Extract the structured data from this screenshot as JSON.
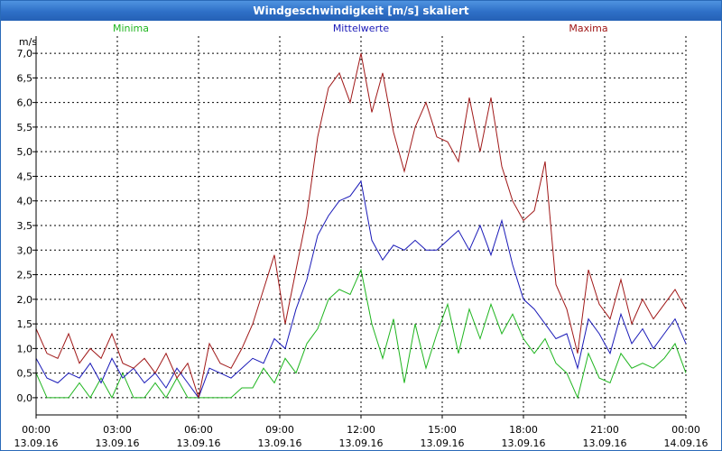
{
  "window": {
    "title": "Windgeschwindigkeit [m/s] skaliert"
  },
  "chart_data": {
    "type": "line",
    "title": "Windgeschwindigkeit [m/s] skaliert",
    "ylabel": "m/s",
    "ylim": [
      -0.35,
      7.35
    ],
    "xlim": [
      0,
      24
    ],
    "yticks": [
      {
        "value": 0.0,
        "label": "0,0"
      },
      {
        "value": 0.5,
        "label": "0,5"
      },
      {
        "value": 1.0,
        "label": "1,0"
      },
      {
        "value": 1.5,
        "label": "1,5"
      },
      {
        "value": 2.0,
        "label": "2,0"
      },
      {
        "value": 2.5,
        "label": "2,5"
      },
      {
        "value": 3.0,
        "label": "3,0"
      },
      {
        "value": 3.5,
        "label": "3,5"
      },
      {
        "value": 4.0,
        "label": "4,0"
      },
      {
        "value": 4.5,
        "label": "4,5"
      },
      {
        "value": 5.0,
        "label": "5,0"
      },
      {
        "value": 5.5,
        "label": "5,5"
      },
      {
        "value": 6.0,
        "label": "6,0"
      },
      {
        "value": 6.5,
        "label": "6,5"
      },
      {
        "value": 7.0,
        "label": "7,0"
      }
    ],
    "xticks": [
      {
        "value": 0,
        "time": "00:00",
        "date": "13.09.16"
      },
      {
        "value": 3,
        "time": "03:00",
        "date": "13.09.16"
      },
      {
        "value": 6,
        "time": "06:00",
        "date": "13.09.16"
      },
      {
        "value": 9,
        "time": "09:00",
        "date": "13.09.16"
      },
      {
        "value": 12,
        "time": "12:00",
        "date": "13.09.16"
      },
      {
        "value": 15,
        "time": "15:00",
        "date": "13.09.16"
      },
      {
        "value": 18,
        "time": "18:00",
        "date": "13.09.16"
      },
      {
        "value": 21,
        "time": "21:00",
        "date": "13.09.16"
      },
      {
        "value": 24,
        "time": "00:00",
        "date": "14.09.16"
      }
    ],
    "grid": true,
    "series": [
      {
        "name": "Minima",
        "color": "#1fb51f",
        "x": [
          0,
          0.4,
          0.8,
          1.2,
          1.6,
          2.0,
          2.4,
          2.8,
          3.2,
          3.6,
          4.0,
          4.4,
          4.8,
          5.2,
          5.6,
          6.0,
          6.4,
          6.8,
          7.2,
          7.6,
          8.0,
          8.4,
          8.8,
          9.2,
          9.6,
          10.0,
          10.4,
          10.8,
          11.2,
          11.6,
          12.0,
          12.4,
          12.8,
          13.2,
          13.6,
          14.0,
          14.4,
          14.8,
          15.2,
          15.6,
          16.0,
          16.4,
          16.8,
          17.2,
          17.6,
          18.0,
          18.4,
          18.8,
          19.2,
          19.6,
          20.0,
          20.4,
          20.8,
          21.2,
          21.6,
          22.0,
          22.4,
          22.8,
          23.2,
          23.6,
          24.0
        ],
        "values": [
          0.5,
          0.0,
          0.0,
          0.0,
          0.3,
          0.0,
          0.4,
          0.0,
          0.5,
          0.0,
          0.0,
          0.3,
          0.0,
          0.4,
          0.0,
          0.0,
          0.0,
          0.0,
          0.0,
          0.2,
          0.2,
          0.6,
          0.3,
          0.8,
          0.5,
          1.1,
          1.4,
          2.0,
          2.2,
          2.1,
          2.6,
          1.5,
          0.8,
          1.6,
          0.3,
          1.5,
          0.6,
          1.3,
          1.9,
          0.9,
          1.8,
          1.2,
          1.9,
          1.3,
          1.7,
          1.2,
          0.9,
          1.2,
          0.7,
          0.5,
          0.0,
          0.9,
          0.4,
          0.3,
          0.9,
          0.6,
          0.7,
          0.6,
          0.8,
          1.1,
          0.5
        ]
      },
      {
        "name": "Mittelwerte",
        "color": "#1a1ab8",
        "x": [
          0,
          0.4,
          0.8,
          1.2,
          1.6,
          2.0,
          2.4,
          2.8,
          3.2,
          3.6,
          4.0,
          4.4,
          4.8,
          5.2,
          5.6,
          6.0,
          6.4,
          6.8,
          7.2,
          7.6,
          8.0,
          8.4,
          8.8,
          9.2,
          9.6,
          10.0,
          10.4,
          10.8,
          11.2,
          11.6,
          12.0,
          12.4,
          12.8,
          13.2,
          13.6,
          14.0,
          14.4,
          14.8,
          15.2,
          15.6,
          16.0,
          16.4,
          16.8,
          17.2,
          17.6,
          18.0,
          18.4,
          18.8,
          19.2,
          19.6,
          20.0,
          20.4,
          20.8,
          21.2,
          21.6,
          22.0,
          22.4,
          22.8,
          23.2,
          23.6,
          24.0
        ],
        "values": [
          0.8,
          0.4,
          0.3,
          0.5,
          0.4,
          0.7,
          0.3,
          0.8,
          0.4,
          0.6,
          0.3,
          0.5,
          0.2,
          0.6,
          0.3,
          0.0,
          0.6,
          0.5,
          0.4,
          0.6,
          0.8,
          0.7,
          1.2,
          1.0,
          1.8,
          2.4,
          3.3,
          3.7,
          4.0,
          4.1,
          4.4,
          3.2,
          2.8,
          3.1,
          3.0,
          3.2,
          3.0,
          3.0,
          3.2,
          3.4,
          3.0,
          3.5,
          2.9,
          3.6,
          2.7,
          2.0,
          1.8,
          1.5,
          1.2,
          1.3,
          0.6,
          1.6,
          1.3,
          0.9,
          1.7,
          1.1,
          1.4,
          1.0,
          1.3,
          1.6,
          1.1
        ]
      },
      {
        "name": "Maxima",
        "color": "#a01818",
        "x": [
          0,
          0.4,
          0.8,
          1.2,
          1.6,
          2.0,
          2.4,
          2.8,
          3.2,
          3.6,
          4.0,
          4.4,
          4.8,
          5.2,
          5.6,
          6.0,
          6.4,
          6.8,
          7.2,
          7.6,
          8.0,
          8.4,
          8.8,
          9.2,
          9.6,
          10.0,
          10.4,
          10.8,
          11.2,
          11.6,
          12.0,
          12.4,
          12.8,
          13.2,
          13.6,
          14.0,
          14.4,
          14.8,
          15.2,
          15.6,
          16.0,
          16.4,
          16.8,
          17.2,
          17.6,
          18.0,
          18.4,
          18.8,
          19.2,
          19.6,
          20.0,
          20.4,
          20.8,
          21.2,
          21.6,
          22.0,
          22.4,
          22.8,
          23.2,
          23.6,
          24.0
        ],
        "values": [
          1.4,
          0.9,
          0.8,
          1.3,
          0.7,
          1.0,
          0.8,
          1.3,
          0.7,
          0.6,
          0.8,
          0.5,
          0.9,
          0.4,
          0.7,
          0.0,
          1.1,
          0.7,
          0.6,
          1.0,
          1.5,
          2.2,
          2.9,
          1.5,
          2.6,
          3.7,
          5.3,
          6.3,
          6.6,
          6.0,
          7.0,
          5.8,
          6.6,
          5.4,
          4.6,
          5.5,
          6.0,
          5.3,
          5.2,
          4.8,
          6.1,
          5.0,
          6.1,
          4.7,
          4.0,
          3.6,
          3.8,
          4.8,
          2.3,
          1.8,
          0.9,
          2.6,
          1.9,
          1.6,
          2.4,
          1.5,
          2.0,
          1.6,
          1.9,
          2.2,
          1.8
        ]
      }
    ]
  }
}
